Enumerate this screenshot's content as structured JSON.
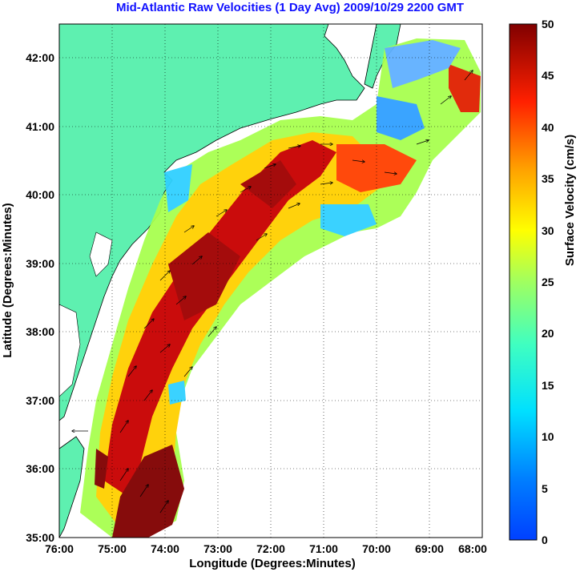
{
  "map": {
    "title": "Mid-Atlantic Raw Velocities (1 Day Avg) 2009/10/29 2200 GMT",
    "xlabel": "Longitude (Degrees:Minutes)",
    "ylabel": "Latitude (Degrees:Minutes)",
    "x_ticks": [
      "76:00",
      "75:00",
      "74:00",
      "73:00",
      "72:00",
      "71:00",
      "70:00",
      "69:00",
      "68:00"
    ],
    "y_ticks": [
      "42:00",
      "41:00",
      "40:00",
      "39:00",
      "38:00",
      "37:00",
      "36:00",
      "35:00"
    ],
    "land_color": "#5ef0b0",
    "grid": "dotted"
  },
  "colorbar": {
    "label": "Surface Velocity (cm/s)",
    "ticks": [
      "50",
      "45",
      "40",
      "35",
      "30",
      "25",
      "20",
      "15",
      "10",
      "5",
      "0"
    ],
    "range": [
      0,
      50
    ],
    "colormap": "jet"
  }
}
